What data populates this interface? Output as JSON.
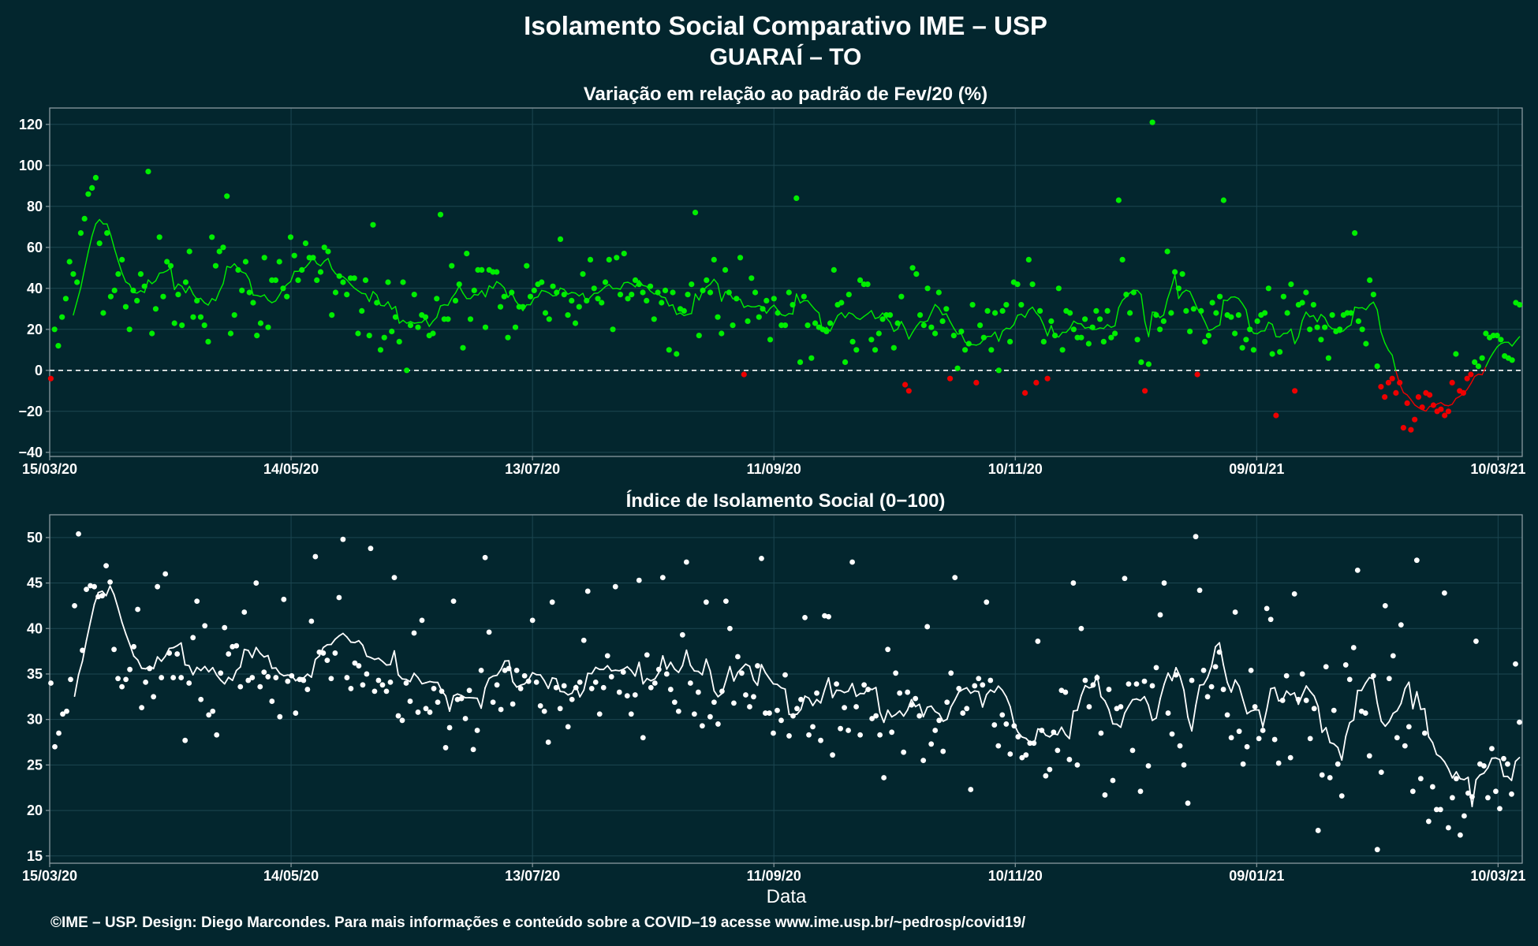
{
  "header": {
    "title": "Isolamento Social Comparativo IME – USP",
    "subtitle": "GUARAÍ – TO"
  },
  "footer": {
    "xlabel": "Data",
    "credit": "©IME – USP. Design: Diego Marcondes. Para mais informações e conteúdo sobre a COVID–19 acesse www.ime.usp.br/~pedrosp/covid19/"
  },
  "colors": {
    "background": "#03262e",
    "positive": "#00ee00",
    "negative": "#ee0000",
    "index": "#ffffff"
  },
  "chart_data": [
    {
      "type": "scatter",
      "title": "Variação em relação ao padrão de Fev/20 (%)",
      "x_start": "2020-03-15",
      "x_end": "2021-03-16",
      "x_ticks": [
        "15/03/20",
        "14/05/20",
        "13/07/20",
        "11/09/20",
        "10/11/20",
        "09/01/21",
        "10/03/21"
      ],
      "x_tick_dates": [
        "2020-03-15",
        "2020-05-14",
        "2020-07-13",
        "2020-09-11",
        "2020-11-10",
        "2021-01-09",
        "2021-03-10"
      ],
      "ylim": [
        -42,
        128
      ],
      "y_ticks": [
        -40,
        -20,
        0,
        20,
        40,
        60,
        80,
        100,
        120
      ],
      "y_tick_labels": [
        "−40",
        "−20",
        "0",
        "20",
        "40",
        "60",
        "80",
        "100",
        "120"
      ],
      "reference_line": 0,
      "point_colors": "green where value >= 0, red where value < 0",
      "moving_average": "7-day rolling mean line",
      "values": [
        -4,
        20,
        12,
        26,
        35,
        53,
        47,
        43,
        67,
        74,
        86,
        89,
        94,
        62,
        28,
        67,
        36,
        39,
        47,
        54,
        31,
        20,
        39,
        34,
        47,
        41,
        97,
        18,
        30,
        65,
        36,
        53,
        51,
        23,
        37,
        22,
        43,
        58,
        26,
        34,
        26,
        22,
        14,
        65,
        51,
        58,
        60,
        85,
        18,
        27,
        49,
        39,
        53,
        38,
        33,
        17,
        23,
        55,
        21,
        44,
        44,
        53,
        40,
        36,
        65,
        56,
        44,
        49,
        62,
        55,
        55,
        44,
        48,
        60,
        58,
        27,
        38,
        46,
        43,
        37,
        45,
        45,
        18,
        29,
        44,
        17,
        71,
        33,
        10,
        16,
        43,
        19,
        26,
        14,
        43,
        0,
        22,
        37,
        21,
        27,
        26,
        17,
        18,
        35,
        76,
        25,
        25,
        51,
        34,
        42,
        11,
        57,
        25,
        39,
        49,
        49,
        21,
        49,
        48,
        48,
        31,
        36,
        16,
        38,
        21,
        31,
        31,
        51,
        36,
        39,
        42,
        43,
        28,
        25,
        41,
        38,
        64,
        37,
        27,
        34,
        23,
        31,
        47,
        34,
        54,
        40,
        35,
        33,
        43,
        54,
        20,
        55,
        37,
        57,
        35,
        37,
        44,
        42,
        38,
        34,
        41,
        25,
        38,
        33,
        39,
        10,
        38,
        8,
        30,
        29,
        37,
        42,
        77,
        17,
        39,
        44,
        38,
        54,
        26,
        18,
        49,
        38,
        22,
        35,
        55,
        -2,
        24,
        45,
        38,
        26,
        30,
        34,
        15,
        35,
        28,
        22,
        22,
        38,
        32,
        84,
        4,
        36,
        22,
        6,
        23,
        21,
        20,
        19,
        23,
        49,
        32,
        33,
        4,
        37,
        14,
        10,
        44,
        42,
        42,
        15,
        10,
        18,
        25,
        27,
        27,
        11,
        23,
        36,
        -7,
        -10,
        50,
        47,
        27,
        22,
        40,
        21,
        18,
        38,
        24,
        30,
        -4,
        17,
        1,
        19,
        10,
        13,
        32,
        -6,
        22,
        16,
        29,
        10,
        28,
        0,
        29,
        32,
        14,
        43,
        42,
        32,
        -11,
        54,
        42,
        -6,
        29,
        14,
        -4,
        24,
        17,
        40,
        10,
        29,
        28,
        20,
        16,
        16,
        25,
        13,
        21,
        29,
        25,
        14,
        29,
        16,
        18,
        83,
        54,
        37,
        28,
        38,
        15,
        4,
        -10,
        3,
        121,
        27,
        20,
        24,
        58,
        28,
        48,
        40,
        47,
        29,
        19,
        30,
        -2,
        29,
        14,
        17,
        33,
        28,
        36,
        83,
        27,
        26,
        18,
        27,
        11,
        15,
        20,
        10,
        24,
        27,
        28,
        40,
        8,
        -22,
        9,
        36,
        28,
        42,
        -10,
        32,
        33,
        38,
        20,
        32,
        21,
        15,
        21,
        6,
        27,
        19,
        20,
        27,
        28,
        28,
        67,
        24,
        20,
        13,
        44,
        37,
        2,
        -8,
        -13,
        -6,
        -4,
        -11,
        -6,
        -28,
        -16,
        -29,
        -24,
        -13,
        -18,
        -11,
        -12,
        -17,
        -20,
        -19,
        -22,
        -20,
        -6,
        8,
        -10,
        -11,
        -4,
        -2,
        4,
        2,
        6,
        18,
        16,
        17,
        17,
        15,
        7,
        6,
        5,
        33,
        32
      ]
    },
    {
      "type": "scatter",
      "title": "Índice de Isolamento Social (0−100)",
      "xlabel": "Data",
      "x_start": "2020-03-15",
      "x_end": "2021-03-16",
      "x_ticks": [
        "15/03/20",
        "14/05/20",
        "13/07/20",
        "11/09/20",
        "10/11/20",
        "09/01/21",
        "10/03/21"
      ],
      "x_tick_dates": [
        "2020-03-15",
        "2020-05-14",
        "2020-07-13",
        "2020-09-11",
        "2020-11-10",
        "2021-01-09",
        "2021-03-10"
      ],
      "ylim": [
        14.2,
        52.5
      ],
      "y_ticks": [
        15,
        20,
        25,
        30,
        35,
        40,
        45,
        50
      ],
      "y_tick_labels": [
        "15",
        "20",
        "25",
        "30",
        "35",
        "40",
        "45",
        "50"
      ],
      "moving_average": "7-day rolling mean line",
      "values": [
        34,
        27,
        28.5,
        30.6,
        30.9,
        34.4,
        42.5,
        50.4,
        37.6,
        44.3,
        44.7,
        44.6,
        43.5,
        43.6,
        46.9,
        45.1,
        37.7,
        34.5,
        33.6,
        34.4,
        35.5,
        38,
        42.1,
        31.3,
        34.1,
        35.6,
        32.5,
        44.6,
        34.6,
        46,
        37.3,
        34.6,
        37.2,
        34.6,
        27.7,
        34,
        39,
        43,
        32.2,
        40.3,
        30.5,
        30.9,
        28.3,
        35.1,
        40.1,
        37.2,
        38,
        38.1,
        33.6,
        41.8,
        34.3,
        34.6,
        45,
        33.6,
        35.2,
        34.7,
        32,
        34.6,
        30.3,
        43.2,
        34.2,
        34.8,
        30.7,
        34.4,
        34.3,
        33.3,
        40.8,
        47.9,
        37.4,
        37.3,
        36.5,
        34.5,
        37.3,
        43.4,
        49.8,
        34.6,
        33.4,
        36.2,
        35.9,
        33.8,
        35,
        48.8,
        33.1,
        34.3,
        33.8,
        33.1,
        34.1,
        45.6,
        30.4,
        29.9,
        34,
        32,
        39.5,
        30.8,
        40.9,
        31.2,
        30.8,
        33.4,
        31.9,
        33.1,
        26.9,
        29.1,
        43,
        32.2,
        32.3,
        30.1,
        33.2,
        26.7,
        28.8,
        35.4,
        47.8,
        39.6,
        31.9,
        33.8,
        31.1,
        35.4,
        35.6,
        31.7,
        35.4,
        33.4,
        34.8,
        34.2,
        40.9,
        34.1,
        31.5,
        30.9,
        27.5,
        42.9,
        33.5,
        31.2,
        33.7,
        29.2,
        32.2,
        33.5,
        34.1,
        38.7,
        44.1,
        33.4,
        34.1,
        30.6,
        33.5,
        37,
        34.7,
        44.6,
        33,
        35.2,
        32.6,
        30.6,
        32.7,
        45.3,
        28,
        37.1,
        33.5,
        34,
        35.5,
        45.6,
        35,
        33.3,
        31.9,
        30.9,
        39.3,
        47.3,
        34,
        30.6,
        33,
        29.3,
        42.9,
        30.3,
        31.9,
        29.5,
        33.1,
        43,
        40,
        31.8,
        36.9,
        35.1,
        32.7,
        31.4,
        32.5,
        35.9,
        47.7,
        30.7,
        30.7,
        28.5,
        31,
        29.9,
        34.9,
        28.2,
        30.4,
        31.2,
        32.2,
        41.2,
        28.3,
        29.2,
        32.9,
        27.7,
        41.4,
        41.3,
        26.1,
        33.9,
        29,
        31.3,
        28.8,
        47.3,
        31.4,
        28.3,
        33.8,
        33.3,
        30.1,
        30.4,
        28.3,
        23.6,
        37.7,
        28.6,
        35.1,
        32.9,
        26.4,
        33,
        31.6,
        32.3,
        30.4,
        25.5,
        40.2,
        27.3,
        28.8,
        29.9,
        26.5,
        31.9,
        35.1,
        45.6,
        33.4,
        30.7,
        31.2,
        22.3,
        33.7,
        34.5,
        33.8,
        42.9,
        34.3,
        29.4,
        27.1,
        30.5,
        29.5,
        26.2,
        29.3,
        28.1,
        25.8,
        26.1,
        27.4,
        27.4,
        38.6,
        28.8,
        23.8,
        24.5,
        28.6,
        26.6,
        33.2,
        33,
        25.6,
        45,
        25,
        40,
        34.3,
        31.4,
        33.8,
        34.6,
        28.5,
        21.7,
        33.3,
        23.3,
        31.2,
        31.4,
        45.5,
        33.9,
        26.6,
        33.9,
        22.1,
        34.2,
        24.9,
        33.7,
        35.7,
        41.5,
        45,
        30.7,
        28.4,
        34.9,
        27.1,
        25,
        20.8,
        34.3,
        50.1,
        44.2,
        35.4,
        32.5,
        33.6,
        35.8,
        37.4,
        33.3,
        30.5,
        28,
        41.8,
        28.7,
        25.1,
        27,
        35.4,
        31.4,
        27.9,
        28.8,
        42.2,
        41,
        27.8,
        25.2,
        32.1,
        34.8,
        25.8,
        43.8,
        32.2,
        35,
        32.1,
        27.9,
        31.2,
        17.8,
        23.9,
        35.8,
        23.6,
        31,
        25.1,
        21.6,
        36,
        34.4,
        37.9,
        46.4,
        30.9,
        30.7,
        26,
        34.8,
        15.7,
        24.2,
        42.5,
        34.5,
        37,
        28,
        40.4,
        27.1,
        29.2,
        22.1,
        47.5,
        23.5,
        28.5,
        18.8,
        22.6,
        20.1,
        20.1,
        43.9,
        18.1,
        21.4,
        23.5,
        17.3,
        19.4,
        21.9,
        21.5,
        38.6,
        25.1,
        24.9,
        21.4,
        26.8,
        22.1,
        20.2,
        25.7,
        25.1,
        21.8,
        36.1,
        29.7
      ]
    }
  ]
}
